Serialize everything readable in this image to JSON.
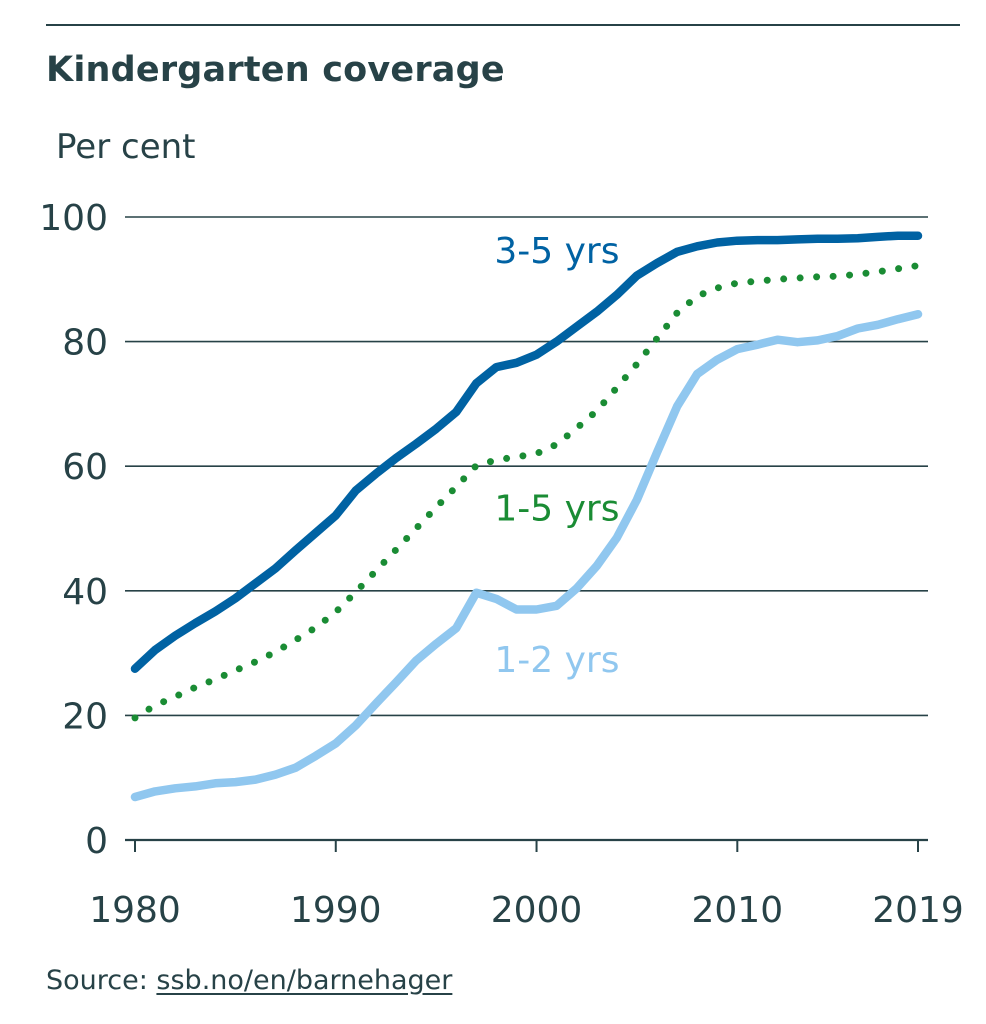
{
  "title": "Kindergarten coverage",
  "source": {
    "label": "Source: ",
    "link_text": "ssb.no/en/barnehager"
  },
  "chart_data": {
    "type": "line",
    "title": "Kindergarten coverage",
    "ylabel": "Per cent",
    "xlabel": "",
    "ylim": [
      0,
      100
    ],
    "yticks": [
      "0",
      "20",
      "40",
      "60",
      "80",
      "100"
    ],
    "xticks": [
      "1980",
      "1990",
      "2000",
      "2010",
      "2019"
    ],
    "grid": true,
    "legend": "inline labels",
    "x": [
      1980,
      1981,
      1982,
      1983,
      1984,
      1985,
      1986,
      1987,
      1988,
      1989,
      1990,
      1991,
      1992,
      1993,
      1994,
      1995,
      1996,
      1997,
      1998,
      1999,
      2000,
      2001,
      2002,
      2003,
      2004,
      2005,
      2006,
      2007,
      2008,
      2009,
      2010,
      2011,
      2012,
      2013,
      2014,
      2015,
      2016,
      2017,
      2018,
      2019
    ],
    "series": [
      {
        "name": "3-5 yrs",
        "color": "#0062a3",
        "style": "solid",
        "values": [
          27.5,
          30.5,
          32.8,
          34.8,
          36.7,
          38.8,
          41.2,
          43.6,
          46.5,
          49.3,
          52.1,
          56.1,
          58.8,
          61.3,
          63.6,
          66.0,
          68.7,
          73.3,
          75.9,
          76.6,
          77.9,
          80.0,
          82.4,
          84.8,
          87.5,
          90.6,
          92.6,
          94.4,
          95.3,
          95.9,
          96.2,
          96.3,
          96.3,
          96.4,
          96.5,
          96.5,
          96.6,
          96.8,
          97.0,
          97.0
        ]
      },
      {
        "name": "1-5 yrs",
        "color": "#1a8c34",
        "style": "dotted",
        "values": [
          19.6,
          21.6,
          23.0,
          24.5,
          25.8,
          27.2,
          28.6,
          30.2,
          32.1,
          34.1,
          36.6,
          39.8,
          43.2,
          46.6,
          50.0,
          53.4,
          56.7,
          60.1,
          61.0,
          61.5,
          62.0,
          63.5,
          66.1,
          68.9,
          72.6,
          76.4,
          80.5,
          84.6,
          87.3,
          88.6,
          89.4,
          89.7,
          90.0,
          90.2,
          90.4,
          90.5,
          90.8,
          91.2,
          91.7,
          92.2
        ]
      },
      {
        "name": "1-2 yrs",
        "color": "#90c7ef",
        "style": "solid",
        "values": [
          6.9,
          7.8,
          8.3,
          8.6,
          9.1,
          9.3,
          9.7,
          10.5,
          11.6,
          13.5,
          15.5,
          18.4,
          21.9,
          25.3,
          28.8,
          31.5,
          34.0,
          39.7,
          38.7,
          37.0,
          37.0,
          37.6,
          40.4,
          44.0,
          48.5,
          54.6,
          62.2,
          69.6,
          74.8,
          77.1,
          78.8,
          79.5,
          80.3,
          79.9,
          80.2,
          80.9,
          82.1,
          82.7,
          83.6,
          84.4
        ]
      }
    ],
    "annotations": [
      {
        "text": "3-5 yrs",
        "x": 1997.9,
        "y": 92.6,
        "color": "#0062a3"
      },
      {
        "text": "1-5 yrs",
        "x": 1997.9,
        "y": 51.3,
        "color": "#1a8c34"
      },
      {
        "text": "1-2 yrs",
        "x": 1997.9,
        "y": 27.0,
        "color": "#90c7ef"
      }
    ]
  }
}
